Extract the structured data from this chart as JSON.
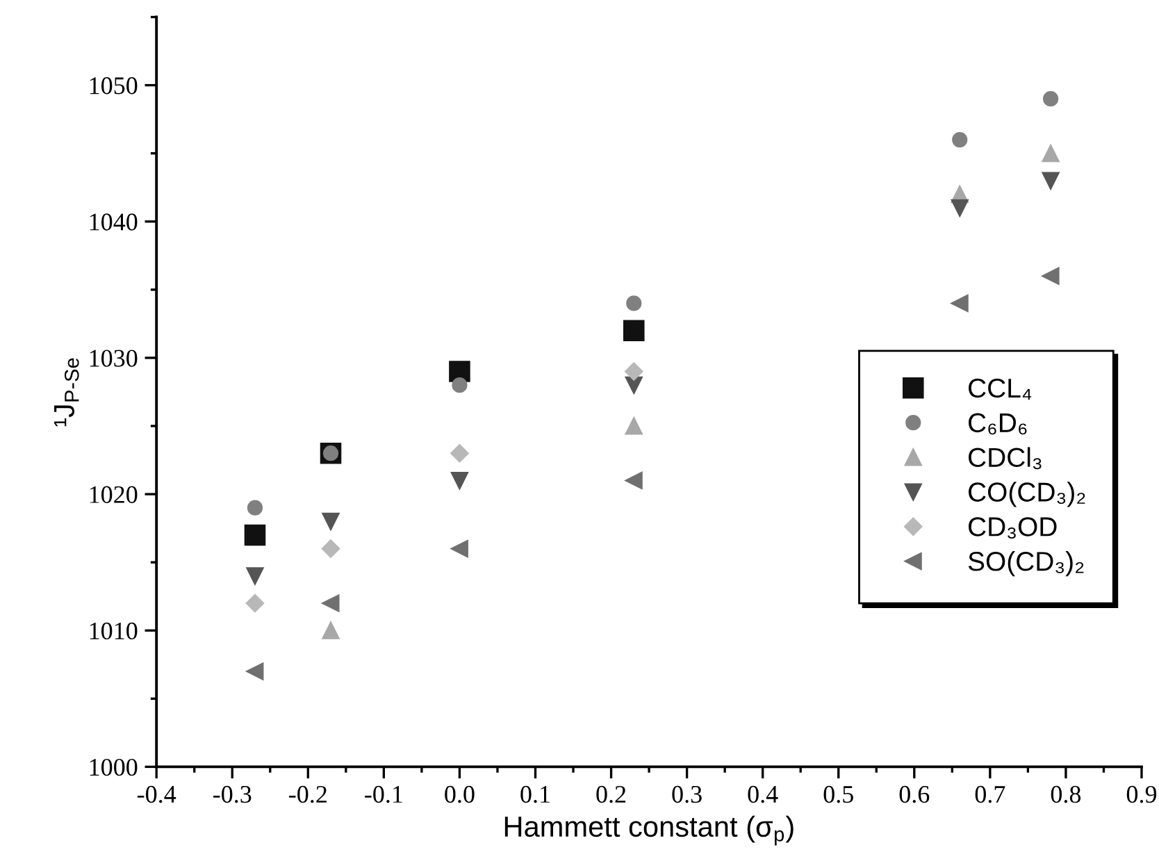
{
  "chart_data": {
    "type": "scatter",
    "xlabel": "Hammett constant (σ$_{p}$)",
    "ylabel": "¹J$_{P-Se}$",
    "x": [
      -0.27,
      -0.17,
      0.0,
      0.23,
      0.66,
      0.78
    ],
    "xlim": [
      -0.4,
      0.9
    ],
    "xticks": [
      {
        "value": -0.4,
        "label": "-0.4"
      },
      {
        "value": -0.3,
        "label": "-0.3"
      },
      {
        "value": -0.2,
        "label": "-0.2"
      },
      {
        "value": -0.1,
        "label": "-0.1"
      },
      {
        "value": 0.0,
        "label": "0.0"
      },
      {
        "value": 0.1,
        "label": "0.1"
      },
      {
        "value": 0.2,
        "label": "0.2"
      },
      {
        "value": 0.3,
        "label": "0.3"
      },
      {
        "value": 0.4,
        "label": "0.4"
      },
      {
        "value": 0.5,
        "label": "0.5"
      },
      {
        "value": 0.6,
        "label": "0.6"
      },
      {
        "value": 0.7,
        "label": "0.7"
      },
      {
        "value": 0.8,
        "label": "0.8"
      },
      {
        "value": 0.9,
        "label": "0.9"
      }
    ],
    "ylim": [
      1000,
      1055
    ],
    "yticks": [
      1000,
      1010,
      1020,
      1030,
      1040,
      1050
    ],
    "legend": "bottom right",
    "grid": false,
    "series": [
      {
        "name": "CCL₄",
        "color": "#111111",
        "values": [
          1017,
          1023,
          1029,
          1032,
          null,
          null
        ]
      },
      {
        "name": "C₆D₆",
        "color": "#808080",
        "values": [
          1019,
          1023,
          1028,
          1034,
          1046,
          1049
        ]
      },
      {
        "name": "CDCl₃",
        "color": "#a8a8a8",
        "values": [
          null,
          1010,
          null,
          1025,
          1042,
          1045
        ]
      },
      {
        "name": "CO(CD₃)₂",
        "color": "#555555",
        "values": [
          1014,
          1018,
          1021,
          1028,
          1041,
          1043
        ]
      },
      {
        "name": "CD₃OD",
        "color": "#b8b8b8",
        "values": [
          1012,
          1016,
          1023,
          1029,
          null,
          null
        ]
      },
      {
        "name": "SO(CD₃)₂",
        "color": "#707070",
        "values": [
          1007,
          1012,
          1016,
          1021,
          1034,
          1036
        ]
      }
    ]
  }
}
